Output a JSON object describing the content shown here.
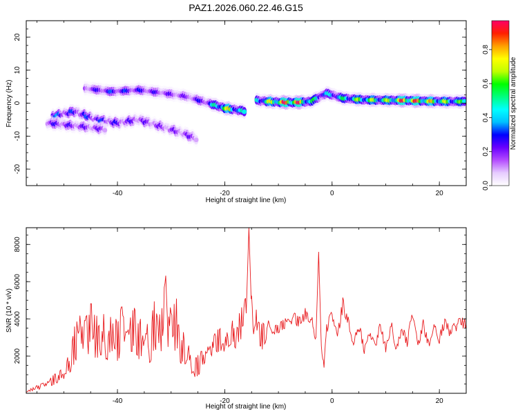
{
  "chart_data": [
    {
      "type": "heatmap",
      "title": "PAZ1.2026.060.22.46.G15",
      "xlabel": "Height of straight line (km)",
      "ylabel": "Frequency (Hz)",
      "xlim": [
        -57,
        25
      ],
      "ylim": [
        -25,
        25
      ],
      "xticks": [
        -40,
        -20,
        0,
        20
      ],
      "yticks": [
        -20,
        -10,
        0,
        10,
        20
      ],
      "colorbar": {
        "label": "Normalized spectral amplitude",
        "range": [
          0.0,
          0.97
        ],
        "ticks": [
          0.0,
          0.2,
          0.4,
          0.6,
          0.8
        ],
        "colors": [
          "#ffffff",
          "#e6ccff",
          "#b44cff",
          "#6a00ff",
          "#0000ff",
          "#00c0ff",
          "#00ffff",
          "#00ff80",
          "#00ff00",
          "#c0ff00",
          "#ffff00",
          "#ffa000",
          "#ff2000",
          "#ff0066"
        ]
      },
      "ridges": [
        {
          "name": "upper descending band",
          "points": [
            [
              -52,
              -4,
              0.33
            ],
            [
              -48,
              -2.5,
              0.28
            ],
            [
              -44,
              -5,
              0.3
            ],
            [
              -40,
              -6,
              0.25
            ],
            [
              -36,
              -5,
              0.22
            ],
            [
              -32,
              -7,
              0.2
            ],
            [
              -28,
              -9,
              0.2
            ],
            [
              -25,
              -11,
              0.22
            ]
          ]
        },
        {
          "name": "lower early band",
          "points": [
            [
              -53,
              -6,
              0.25
            ],
            [
              -47,
              -7,
              0.22
            ],
            [
              -42,
              -8,
              0.2
            ]
          ]
        },
        {
          "name": "upper branch",
          "points": [
            [
              -46,
              4.5,
              0.2
            ],
            [
              -41,
              3.5,
              0.3
            ],
            [
              -36,
              4,
              0.27
            ],
            [
              -31,
              3,
              0.22
            ],
            [
              -27,
              2,
              0.2
            ],
            [
              -23,
              0,
              0.3
            ],
            [
              -20,
              -1.5,
              0.75
            ],
            [
              -16,
              -2.5,
              0.38
            ]
          ]
        },
        {
          "name": "main carrier line",
          "points": [
            [
              -14,
              0.8,
              0.45
            ],
            [
              -10,
              0.3,
              0.8
            ],
            [
              -7,
              0.2,
              0.97
            ],
            [
              -4,
              0.5,
              0.55
            ],
            [
              -1,
              3,
              0.4
            ],
            [
              2,
              1.5,
              0.5
            ],
            [
              6,
              1,
              0.65
            ],
            [
              10,
              0.9,
              0.6
            ],
            [
              14,
              0.8,
              0.92
            ],
            [
              18,
              0.6,
              0.75
            ],
            [
              22,
              0.5,
              0.6
            ],
            [
              25,
              0.5,
              0.55
            ]
          ]
        }
      ]
    },
    {
      "type": "line",
      "xlabel": "Height of straight line (km)",
      "ylabel": "SNR (10 * v/v)",
      "xlim": [
        -57,
        25
      ],
      "ylim": [
        0,
        8900
      ],
      "xticks": [
        -40,
        -20,
        0,
        20
      ],
      "yticks": [
        2000,
        4000,
        6000,
        8000
      ],
      "series": [
        {
          "name": "SNR",
          "color": "#e8191c",
          "x": [
            -57,
            -55,
            -53,
            -51,
            -49,
            -48,
            -47,
            -46,
            -45,
            -44,
            -43,
            -42,
            -41,
            -40,
            -39,
            -38,
            -37,
            -36,
            -35,
            -34,
            -33,
            -32,
            -31,
            -30,
            -29,
            -28,
            -27,
            -26,
            -25,
            -24,
            -23,
            -22,
            -21,
            -20,
            -19,
            -18,
            -17,
            -16,
            -15.5,
            -15,
            -14.5,
            -14,
            -13,
            -12,
            -11,
            -10,
            -9,
            -8,
            -7,
            -6,
            -5,
            -4,
            -3,
            -2.5,
            -2,
            -1.5,
            -1,
            0,
            1,
            2,
            3,
            4,
            5,
            6,
            7,
            8,
            9,
            10,
            11,
            12,
            13,
            14,
            15,
            16,
            17,
            18,
            19,
            20,
            21,
            22,
            23,
            24,
            25
          ],
          "y": [
            100,
            300,
            500,
            900,
            1600,
            2600,
            3200,
            2900,
            3600,
            3000,
            3300,
            2800,
            3400,
            2700,
            3700,
            2600,
            3500,
            2800,
            3700,
            2500,
            3900,
            3000,
            4600,
            3200,
            3700,
            2300,
            2600,
            1300,
            1500,
            1800,
            2100,
            2600,
            2900,
            2700,
            3300,
            3100,
            3700,
            4300,
            8900,
            4300,
            4000,
            3600,
            3000,
            3800,
            3400,
            3500,
            3700,
            3800,
            4000,
            3800,
            4300,
            4100,
            3000,
            7600,
            2400,
            1500,
            3500,
            4200,
            3000,
            4800,
            3900,
            2700,
            3700,
            2300,
            3200,
            2500,
            3600,
            2400,
            3700,
            2400,
            3500,
            2700,
            4300,
            2500,
            3700,
            2600,
            3700,
            2900,
            3900,
            3200,
            3600,
            3800,
            3700
          ]
        }
      ]
    }
  ]
}
